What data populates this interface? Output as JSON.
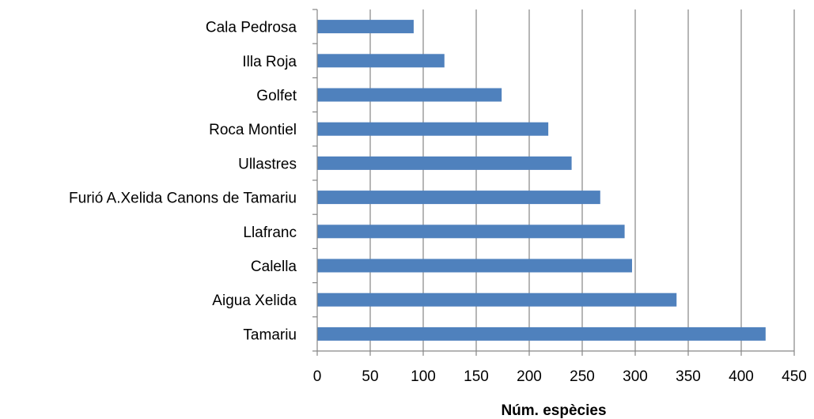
{
  "chart_data": {
    "type": "bar",
    "orientation": "horizontal",
    "categories": [
      "Cala Pedrosa",
      "Illa Roja",
      "Golfet",
      "Roca Montiel",
      "Ullastres",
      "Furió A.Xelida Canons de Tamariu",
      "Llafranc",
      "Calella",
      "Aigua Xelida",
      "Tamariu"
    ],
    "values": [
      91,
      120,
      174,
      218,
      240,
      267,
      290,
      297,
      339,
      423
    ],
    "xlabel": "Núm. espècies",
    "ylabel": "",
    "xlim": [
      0,
      450
    ],
    "xticks": [
      0,
      50,
      100,
      150,
      200,
      250,
      300,
      350,
      400,
      450
    ],
    "grid": "vertical",
    "legend": "none",
    "colors": {
      "bar": "#4f81bd",
      "grid": "#868686"
    }
  }
}
